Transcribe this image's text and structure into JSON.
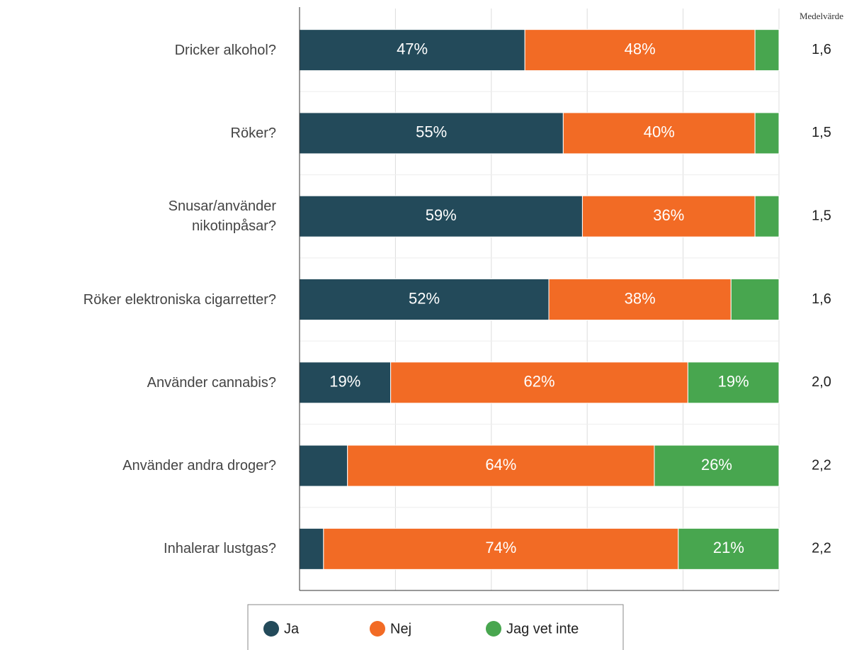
{
  "chart_data": {
    "type": "stacked_bar_horizontal",
    "categories": [
      "Dricker alkohol?",
      "Röker?",
      "Snusar/använder\nnikotinpåsar?",
      "Röker elektroniska cigarretter?",
      "Använder cannabis?",
      "Använder andra droger?",
      "Inhalerar lustgas?"
    ],
    "series": [
      {
        "name": "Ja",
        "color": "#234a5a",
        "values": [
          47,
          55,
          59,
          52,
          19,
          10,
          5
        ],
        "value_labels": [
          "47%",
          "55%",
          "59%",
          "52%",
          "19%",
          null,
          null
        ]
      },
      {
        "name": "Nej",
        "color": "#f26b25",
        "values": [
          48,
          40,
          36,
          38,
          62,
          64,
          74
        ],
        "value_labels": [
          "48%",
          "40%",
          "36%",
          "38%",
          "62%",
          "64%",
          "74%"
        ]
      },
      {
        "name": "Jag vet inte",
        "color": "#48a64f",
        "values": [
          5,
          5,
          5,
          10,
          19,
          26,
          21
        ],
        "value_labels": [
          null,
          null,
          null,
          null,
          "19%",
          "26%",
          "21%"
        ]
      }
    ],
    "xlim": [
      0,
      100
    ],
    "xticks": [
      0,
      20,
      40,
      60,
      80,
      100
    ],
    "grid": true,
    "means_title": "Medelvärde",
    "means": [
      1.6,
      1.5,
      1.5,
      1.6,
      2.0,
      2.2,
      2.2
    ],
    "means_labels": [
      "1,6",
      "1,5",
      "1,5",
      "1,6",
      "2,0",
      "2,2",
      "2,2"
    ]
  }
}
